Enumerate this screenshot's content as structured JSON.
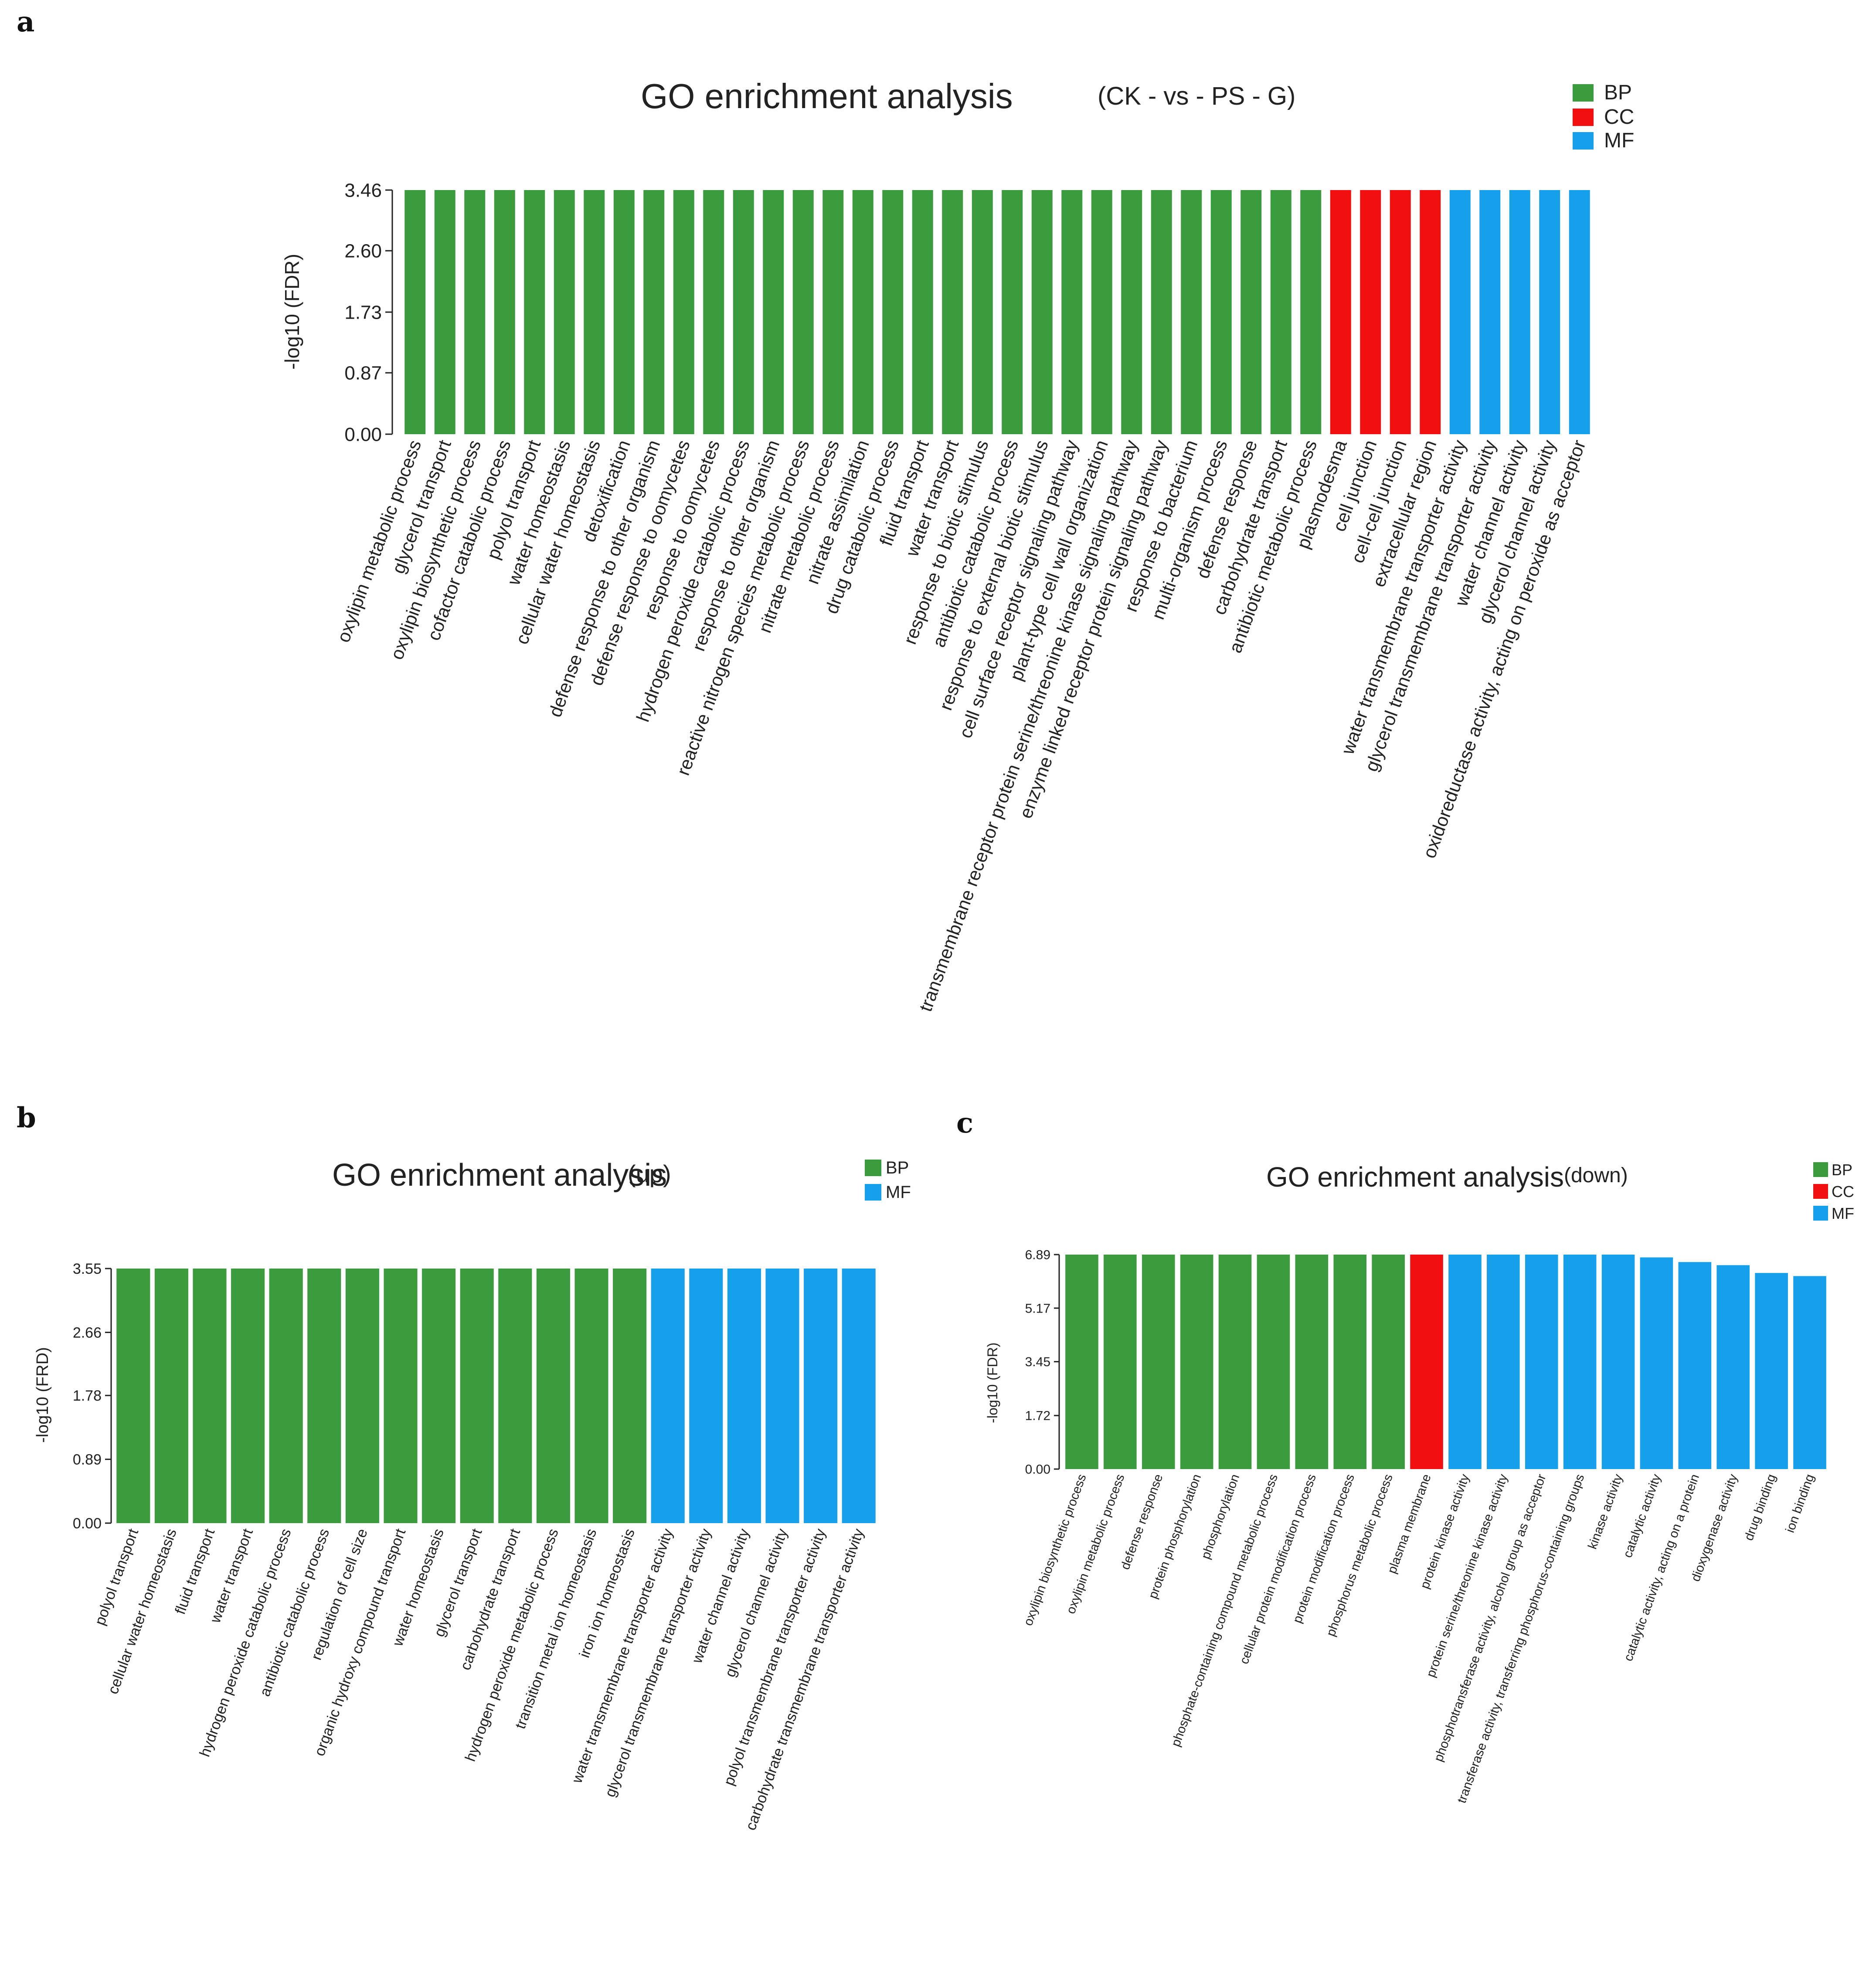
{
  "colors": {
    "BP": "#3a9c3c",
    "CC": "#f20f0f",
    "MF": "#16a0ec"
  },
  "chart_data": [
    {
      "panel": "a",
      "type": "bar",
      "title": "GO enrichment analysis",
      "subtitle": "(CK - vs - PS - G)",
      "ylabel": "-log10 (FDR)",
      "xlabel": "",
      "ylim": [
        0,
        3.46
      ],
      "yticks": [
        "0.00",
        "0.87",
        "1.73",
        "2.60",
        "3.46"
      ],
      "legend": [
        "BP",
        "CC",
        "MF"
      ],
      "legend_position": "top-right",
      "categories": [
        "oxylipin metabolic process",
        "glycerol transport",
        "oxylipin biosynthetic process",
        "cofactor catabolic process",
        "polyol transport",
        "water homeostasis",
        "cellular water homeostasis",
        "detoxification",
        "defense response to other organism",
        "defense response to oomycetes",
        "response to oomycetes",
        "hydrogen peroxide catabolic process",
        "response to other organism",
        "reactive nitrogen species metabolic process",
        "nitrate metabolic process",
        "nitrate assimilation",
        "drug catabolic process",
        "fluid transport",
        "water transport",
        "response to biotic stimulus",
        "antibiotic catabolic process",
        "response to external biotic stimulus",
        "cell surface receptor signaling pathway",
        "plant-type cell wall organization",
        "transmembrane receptor protein serine/threonine kinase signaling pathway",
        "enzyme linked receptor protein signaling pathway",
        "response to bacterium",
        "multi-organism process",
        "defense response",
        "carbohydrate transport",
        "antibiotic metabolic process",
        "plasmodesma",
        "cell junction",
        "cell-cell junction",
        "extracellular region",
        "water transmembrane transporter activity",
        "glycerol transmembrane transporter activity",
        "water channel activity",
        "glycerol channel activity",
        "oxidoreductase activity, acting on peroxide as acceptor"
      ],
      "values": [
        3.46,
        3.46,
        3.46,
        3.46,
        3.46,
        3.46,
        3.46,
        3.46,
        3.46,
        3.46,
        3.46,
        3.46,
        3.46,
        3.46,
        3.46,
        3.46,
        3.46,
        3.46,
        3.46,
        3.46,
        3.46,
        3.46,
        3.46,
        3.46,
        3.46,
        3.46,
        3.46,
        3.46,
        3.46,
        3.46,
        3.46,
        3.46,
        3.46,
        3.46,
        3.46,
        3.46,
        3.46,
        3.46,
        3.46,
        3.46
      ],
      "groups": [
        "BP",
        "BP",
        "BP",
        "BP",
        "BP",
        "BP",
        "BP",
        "BP",
        "BP",
        "BP",
        "BP",
        "BP",
        "BP",
        "BP",
        "BP",
        "BP",
        "BP",
        "BP",
        "BP",
        "BP",
        "BP",
        "BP",
        "BP",
        "BP",
        "BP",
        "BP",
        "BP",
        "BP",
        "BP",
        "BP",
        "BP",
        "CC",
        "CC",
        "CC",
        "CC",
        "MF",
        "MF",
        "MF",
        "MF",
        "MF"
      ]
    },
    {
      "panel": "b",
      "type": "bar",
      "title": "GO enrichment analysis",
      "subtitle": "(up)",
      "ylabel": "-log10 (FRD)",
      "xlabel": "",
      "ylim": [
        0,
        3.55
      ],
      "yticks": [
        "0.00",
        "0.89",
        "1.78",
        "2.66",
        "3.55"
      ],
      "legend": [
        "BP",
        "MF"
      ],
      "legend_position": "top-right",
      "categories": [
        "polyol transport",
        "cellular water homeostasis",
        "fluid transport",
        "water transport",
        "hydrogen peroxide catabolic process",
        "antibiotic catabolic process",
        "regulation of cell size",
        "organic hydroxy compound transport",
        "water homeostasis",
        "glycerol transport",
        "carbohydrate transport",
        "hydrogen peroxide metabolic process",
        "transition metal ion homeostasis",
        "iron ion homeostasis",
        "water transmembrane transporter activity",
        "glycerol transmembrane transporter activity",
        "water channel activity",
        "glycerol channel activity",
        "polyol transmembrane transporter activity",
        "carbohydrate transmembrane transporter activity"
      ],
      "values": [
        3.55,
        3.55,
        3.55,
        3.55,
        3.55,
        3.55,
        3.55,
        3.55,
        3.55,
        3.55,
        3.55,
        3.55,
        3.55,
        3.55,
        3.55,
        3.55,
        3.55,
        3.55,
        3.55,
        3.55
      ],
      "groups": [
        "BP",
        "BP",
        "BP",
        "BP",
        "BP",
        "BP",
        "BP",
        "BP",
        "BP",
        "BP",
        "BP",
        "BP",
        "BP",
        "BP",
        "MF",
        "MF",
        "MF",
        "MF",
        "MF",
        "MF"
      ]
    },
    {
      "panel": "c",
      "type": "bar",
      "title": "GO enrichment analysis",
      "subtitle": "(down)",
      "ylabel": "-log10 (FDR)",
      "xlabel": "",
      "ylim": [
        0,
        6.89
      ],
      "yticks": [
        "0.00",
        "1.72",
        "3.45",
        "5.17",
        "6.89"
      ],
      "legend": [
        "BP",
        "CC",
        "MF"
      ],
      "legend_position": "top-right",
      "categories": [
        "oxylipin biosynthetic process",
        "oxylipin metabolic process",
        "defense response",
        "protein phosphorylation",
        "phosphorylation",
        "phosphate-containing compound metabolic process",
        "cellular protein modification process",
        "protein modification process",
        "phosphorus metabolic process",
        "plasma membrane",
        "protein kinase activity",
        "protein serine/threonine kinase activity",
        "phosphotransferase activity, alcohol group as acceptor",
        "transferase activity, transferring phosphorus-containing groups",
        "kinase activity",
        "catalytic activity",
        "catalytic activity, acting on a protein",
        "dioxygenase activity",
        "drug binding",
        "ion binding"
      ],
      "values": [
        6.89,
        6.89,
        6.89,
        6.89,
        6.89,
        6.89,
        6.89,
        6.89,
        6.89,
        6.89,
        6.89,
        6.89,
        6.89,
        6.89,
        6.89,
        6.8,
        6.65,
        6.55,
        6.3,
        6.2
      ],
      "groups": [
        "BP",
        "BP",
        "BP",
        "BP",
        "BP",
        "BP",
        "BP",
        "BP",
        "BP",
        "CC",
        "MF",
        "MF",
        "MF",
        "MF",
        "MF",
        "MF",
        "MF",
        "MF",
        "MF",
        "MF"
      ]
    }
  ]
}
